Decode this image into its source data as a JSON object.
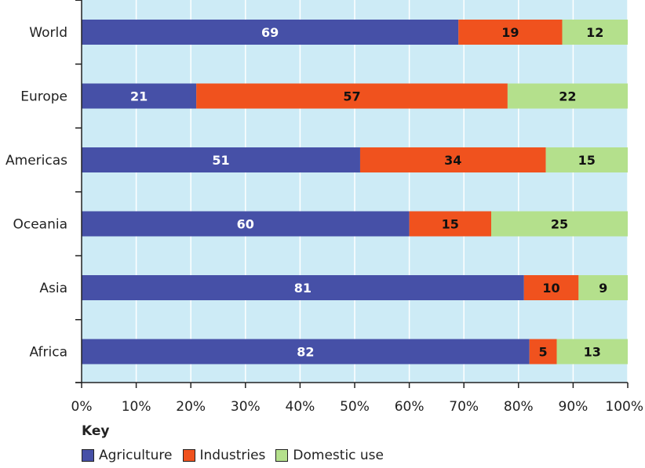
{
  "chart_data": {
    "type": "bar",
    "orientation": "horizontal",
    "stacked": true,
    "categories": [
      "World",
      "Europe",
      "Americas",
      "Oceania",
      "Asia",
      "Africa"
    ],
    "series": [
      {
        "name": "Agriculture",
        "color": "#4650a7",
        "label_color": "#ffffff",
        "values": [
          69,
          21,
          51,
          60,
          81,
          82
        ]
      },
      {
        "name": "Industries",
        "color": "#f0521e",
        "label_color": "#111111",
        "values": [
          19,
          57,
          34,
          15,
          10,
          5
        ]
      },
      {
        "name": "Domestic use",
        "color": "#b4e08c",
        "label_color": "#111111",
        "values": [
          12,
          22,
          15,
          25,
          9,
          13
        ]
      }
    ],
    "xlim": [
      0,
      100
    ],
    "x_ticks": [
      "0%",
      "10%",
      "20%",
      "30%",
      "40%",
      "50%",
      "60%",
      "70%",
      "80%",
      "90%",
      "100%"
    ],
    "grid": true,
    "background": "#cdebf6",
    "legend_title": "Key",
    "legend_position": "bottom-left"
  }
}
